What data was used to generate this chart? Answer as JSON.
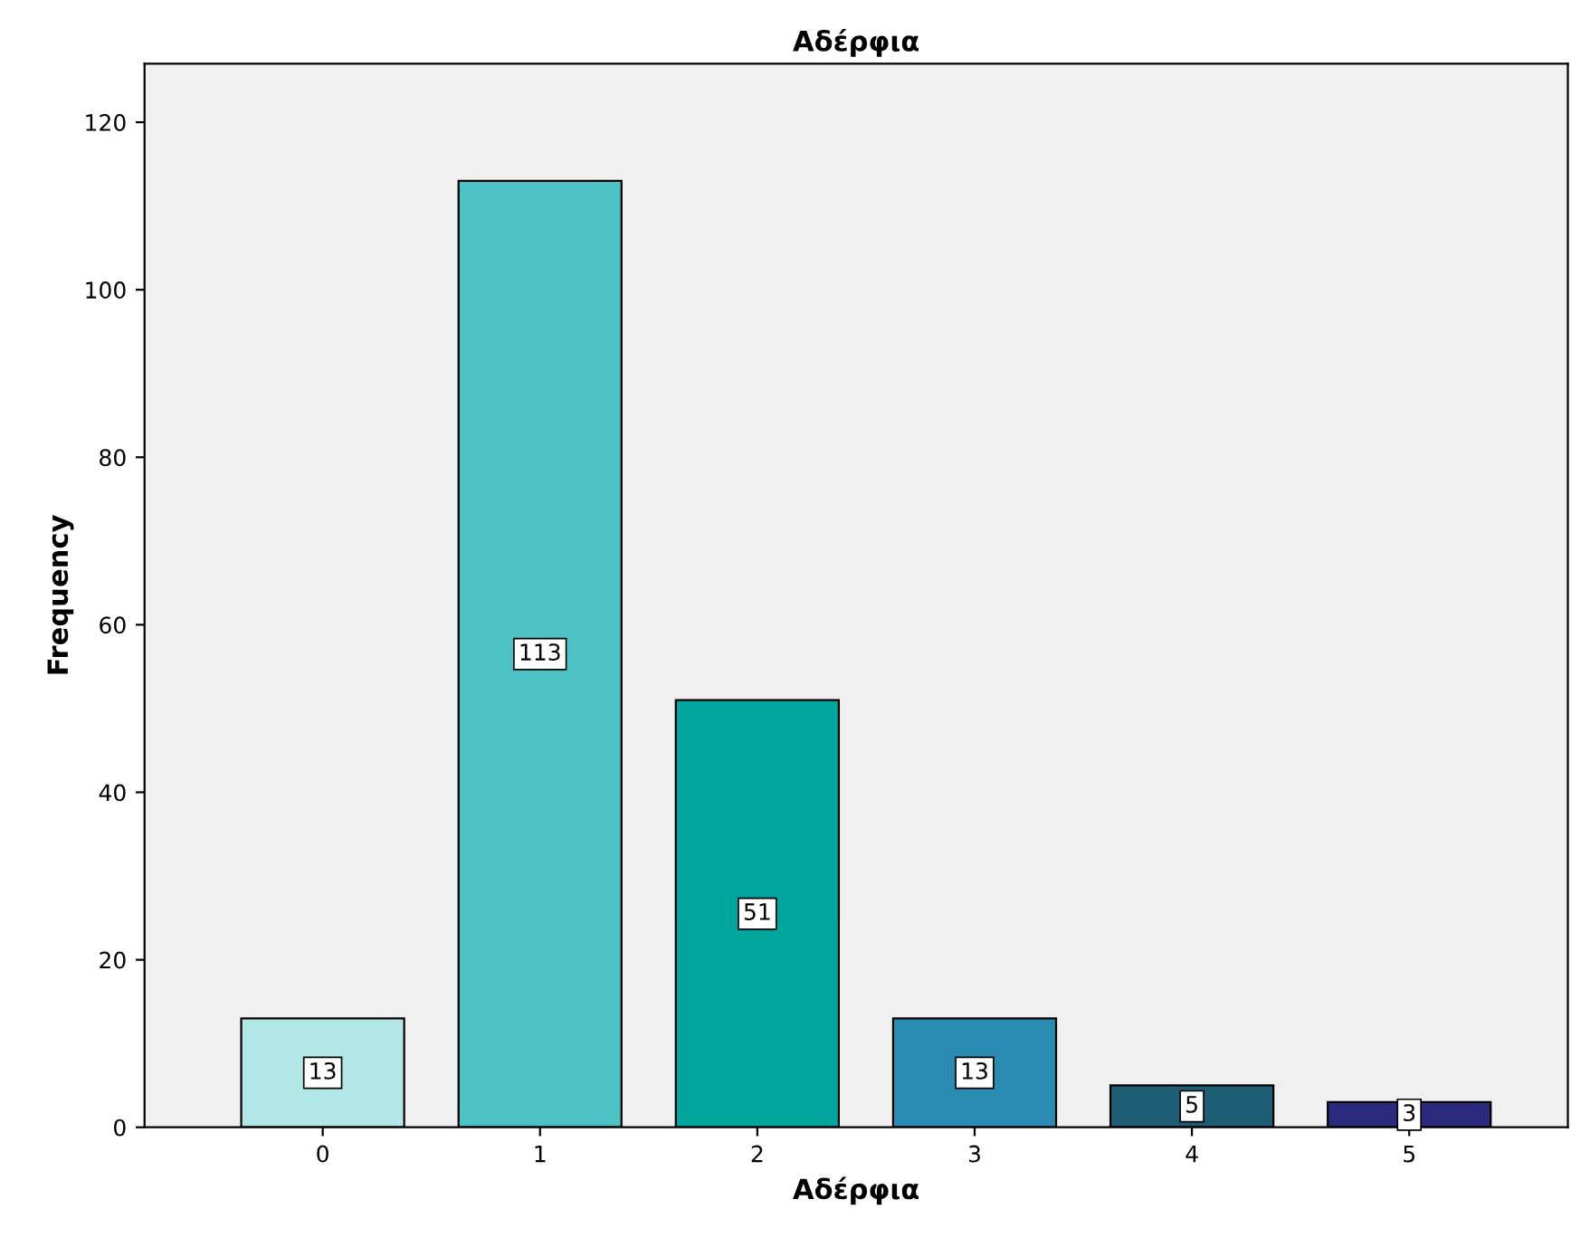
{
  "chart_data": {
    "type": "bar",
    "title": "Αδέρφια",
    "xlabel": "Αδέρφια",
    "ylabel": "Frequency",
    "categories": [
      "0",
      "1",
      "2",
      "3",
      "4",
      "5"
    ],
    "values": [
      13,
      113,
      51,
      13,
      5,
      3
    ],
    "colors": [
      "#b3e6e6",
      "#4dc2c4",
      "#00a59e",
      "#2a8bb2",
      "#1d5e74",
      "#2b2a7c"
    ],
    "ylim": [
      0,
      127
    ],
    "yticks": [
      0,
      20,
      40,
      60,
      80,
      100,
      120
    ],
    "data_labels": true,
    "grid": false,
    "legend": false
  }
}
